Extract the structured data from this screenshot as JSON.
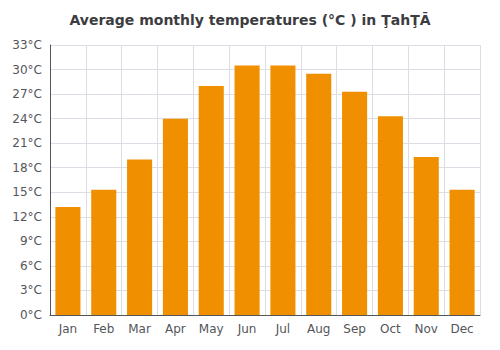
{
  "chart_data": {
    "type": "bar",
    "title": "Average monthly temperatures (°C ) in ŢahŢĀ",
    "categories": [
      "Jan",
      "Feb",
      "Mar",
      "Apr",
      "May",
      "Jun",
      "Jul",
      "Aug",
      "Sep",
      "Oct",
      "Nov",
      "Dec"
    ],
    "values": [
      13.2,
      15.3,
      19.0,
      24.0,
      28.0,
      30.5,
      30.5,
      29.5,
      27.3,
      24.3,
      19.3,
      15.3
    ],
    "color": "#F09000",
    "ylim": [
      0,
      33
    ],
    "yticks": [
      {
        "value": 0,
        "label": "0°C"
      },
      {
        "value": 3,
        "label": "3°C"
      },
      {
        "value": 6,
        "label": "6°C"
      },
      {
        "value": 9,
        "label": "9°C"
      },
      {
        "value": 12,
        "label": "12°C"
      },
      {
        "value": 15,
        "label": "15°C"
      },
      {
        "value": 18,
        "label": "18°C"
      },
      {
        "value": 21,
        "label": "21°C"
      },
      {
        "value": 24,
        "label": "24°C"
      },
      {
        "value": 27,
        "label": "27°C"
      },
      {
        "value": 30,
        "label": "30°C"
      },
      {
        "value": 33,
        "label": "33°C"
      }
    ],
    "grid": true
  }
}
